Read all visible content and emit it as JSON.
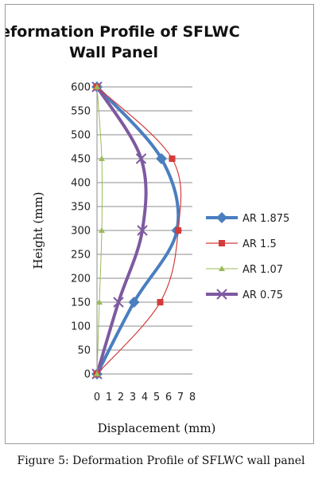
{
  "caption": "Figure 5: Deformation Profile of SFLWC wall panel",
  "chart_data": {
    "type": "line",
    "title_lines": [
      "Deformation Profile of SFLWC",
      "Wall Panel"
    ],
    "xlabel": "Displacement (mm)",
    "ylabel": "Height (mm)",
    "xlim": [
      0,
      8
    ],
    "ylim": [
      0,
      600
    ],
    "x_ticks": [
      0,
      1,
      2,
      3,
      4,
      5,
      6,
      7,
      8
    ],
    "y_ticks": [
      0,
      50,
      100,
      150,
      200,
      250,
      300,
      350,
      400,
      450,
      500,
      550,
      600
    ],
    "grid": "horizontal",
    "legend_position": "right",
    "series": [
      {
        "name": "AR 1.875",
        "color": "#4a7ebf",
        "marker": "diamond",
        "x": [
          0,
          3.1,
          6.7,
          5.4,
          0
        ],
        "y": [
          0,
          150,
          300,
          450,
          600
        ]
      },
      {
        "name": "AR 1.5",
        "color": "#d43b3b",
        "marker": "square",
        "x": [
          0,
          5.3,
          6.8,
          6.3,
          0
        ],
        "y": [
          0,
          150,
          300,
          450,
          600
        ]
      },
      {
        "name": "AR 1.07",
        "color": "#9bbb59",
        "marker": "triangle",
        "x": [
          0,
          0.2,
          0.4,
          0.4,
          0
        ],
        "y": [
          0,
          150,
          300,
          450,
          600
        ]
      },
      {
        "name": "AR 0.75",
        "color": "#7d5aa0",
        "marker": "x",
        "x": [
          0,
          1.8,
          3.8,
          3.7,
          0
        ],
        "y": [
          0,
          150,
          300,
          450,
          600
        ]
      }
    ]
  }
}
